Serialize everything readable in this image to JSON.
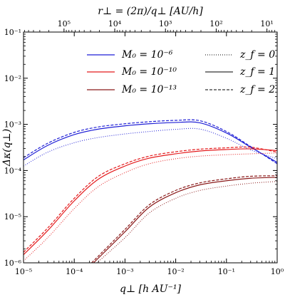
{
  "chart_data": {
    "type": "line",
    "title": "",
    "top_axis_label": "r⊥ = (2π)/q⊥ [AU/h]",
    "top_ticks": [
      {
        "r": 1000000.0,
        "label": "10⁶"
      },
      {
        "r": 100000.0,
        "label": "10⁵"
      },
      {
        "r": 10000.0,
        "label": "10⁴"
      },
      {
        "r": 1000.0,
        "label": "10³"
      },
      {
        "r": 100.0,
        "label": "10²"
      },
      {
        "r": 10.0,
        "label": "10¹"
      },
      {
        "r": 1.0,
        "label": "10⁰"
      }
    ],
    "xlabel": "q⊥ [h AU⁻¹]",
    "ylabel": "Δκ(q⊥)",
    "xscale": "log",
    "yscale": "log",
    "xlim": [
      1e-05,
      1
    ],
    "ylim": [
      1e-06,
      0.1
    ],
    "x_ticks": [
      {
        "value": 1e-05,
        "label": "10⁻⁵"
      },
      {
        "value": 0.0001,
        "label": "10⁻⁴"
      },
      {
        "value": 0.001,
        "label": "10⁻³"
      },
      {
        "value": 0.01,
        "label": "10⁻²"
      },
      {
        "value": 0.1,
        "label": "10⁻¹"
      },
      {
        "value": 1.0,
        "label": "10⁰"
      }
    ],
    "y_ticks": [
      {
        "value": 1e-06,
        "label": "10⁻⁶"
      },
      {
        "value": 1e-05,
        "label": "10⁻⁵"
      },
      {
        "value": 0.0001,
        "label": "10⁻⁴"
      },
      {
        "value": 0.001,
        "label": "10⁻³"
      },
      {
        "value": 0.01,
        "label": "10⁻²"
      },
      {
        "value": 0.1,
        "label": "10⁻¹"
      }
    ],
    "grid": false,
    "legend_position": "top",
    "legend_colors": [
      {
        "label": "M₀ = 10⁻⁶",
        "color": "#1f1fd6"
      },
      {
        "label": "M₀ = 10⁻¹⁰",
        "color": "#e41a1c"
      },
      {
        "label": "M₀ = 10⁻¹³",
        "color": "#8b1a1a"
      }
    ],
    "legend_styles": [
      {
        "label": "z_f = 0",
        "dash": "dotted"
      },
      {
        "label": "z_f = 1",
        "dash": "solid"
      },
      {
        "label": "z_f = 2",
        "dash": "dashed"
      }
    ],
    "series": [
      {
        "mass": "1e-6",
        "zf": "0",
        "color": "#1f1fd6",
        "dash": "dotted",
        "x": [
          1e-05,
          3e-05,
          0.0001,
          0.0003,
          0.001,
          0.003,
          0.01,
          0.03,
          0.1,
          0.3,
          1
        ],
        "y": [
          0.000125,
          0.00025,
          0.0004,
          0.00052,
          0.00062,
          0.0007,
          0.00078,
          0.00079,
          0.0005,
          0.00028,
          0.00018
        ]
      },
      {
        "mass": "1e-6",
        "zf": "1",
        "color": "#1f1fd6",
        "dash": "solid",
        "x": [
          1e-05,
          3e-05,
          0.0001,
          0.0003,
          0.001,
          0.003,
          0.01,
          0.03,
          0.1,
          0.3,
          1
        ],
        "y": [
          0.00017,
          0.00035,
          0.0006,
          0.00079,
          0.00093,
          0.00103,
          0.0011,
          0.00108,
          0.00065,
          0.00032,
          0.00015
        ]
      },
      {
        "mass": "1e-6",
        "zf": "2",
        "color": "#1f1fd6",
        "dash": "dashed",
        "x": [
          1e-05,
          3e-05,
          0.0001,
          0.0003,
          0.001,
          0.003,
          0.01,
          0.03,
          0.1,
          0.3,
          1
        ],
        "y": [
          0.00019,
          0.00039,
          0.00067,
          0.00088,
          0.00103,
          0.00114,
          0.00122,
          0.0012,
          0.0007,
          0.00033,
          0.00014
        ]
      },
      {
        "mass": "1e-10",
        "zf": "0",
        "color": "#e41a1c",
        "dash": "dotted",
        "x": [
          1e-05,
          3e-05,
          0.0001,
          0.0003,
          0.001,
          0.003,
          0.01,
          0.03,
          0.1,
          0.3,
          1
        ],
        "y": [
          1.1e-06,
          3.5e-06,
          1.5e-05,
          4.5e-05,
          9e-05,
          0.00014,
          0.00018,
          0.000205,
          0.00022,
          0.00023,
          0.00024
        ]
      },
      {
        "mass": "1e-10",
        "zf": "1",
        "color": "#e41a1c",
        "dash": "solid",
        "x": [
          1e-05,
          3e-05,
          0.0001,
          0.0003,
          0.001,
          0.003,
          0.01,
          0.03,
          0.1,
          0.3,
          1
        ],
        "y": [
          1.5e-06,
          5e-06,
          2.2e-05,
          6.5e-05,
          0.000125,
          0.000185,
          0.00023,
          0.000265,
          0.000285,
          0.000295,
          0.00027
        ]
      },
      {
        "mass": "1e-10",
        "zf": "2",
        "color": "#e41a1c",
        "dash": "dashed",
        "x": [
          1e-05,
          3e-05,
          0.0001,
          0.0003,
          0.001,
          0.003,
          0.01,
          0.03,
          0.1,
          0.3,
          1
        ],
        "y": [
          1.7e-06,
          5.7e-06,
          2.5e-05,
          7.5e-05,
          0.00014,
          0.000205,
          0.000255,
          0.00029,
          0.00031,
          0.00032,
          0.00025
        ]
      },
      {
        "mass": "1e-13",
        "zf": "0",
        "color": "#8b1a1a",
        "dash": "dotted",
        "x": [
          0.00028,
          0.001,
          0.003,
          0.01,
          0.03,
          0.1,
          0.3,
          1
        ],
        "y": [
          1e-06,
          3.5e-06,
          1.2e-05,
          2.5e-05,
          3.7e-05,
          4.6e-05,
          5.3e-05,
          5.8e-05
        ]
      },
      {
        "mass": "1e-13",
        "zf": "1",
        "color": "#8b1a1a",
        "dash": "solid",
        "x": [
          0.00024,
          0.001,
          0.003,
          0.01,
          0.03,
          0.1,
          0.3,
          1
        ],
        "y": [
          1e-06,
          4.7e-06,
          1.6e-05,
          3.3e-05,
          4.9e-05,
          6e-05,
          6.8e-05,
          7.1e-05
        ]
      },
      {
        "mass": "1e-13",
        "zf": "2",
        "color": "#8b1a1a",
        "dash": "dashed",
        "x": [
          0.00022,
          0.001,
          0.003,
          0.01,
          0.03,
          0.1,
          0.3,
          1
        ],
        "y": [
          1e-06,
          5.3e-06,
          1.8e-05,
          3.7e-05,
          5.4e-05,
          6.6e-05,
          7.5e-05,
          7.7e-05
        ]
      }
    ]
  }
}
